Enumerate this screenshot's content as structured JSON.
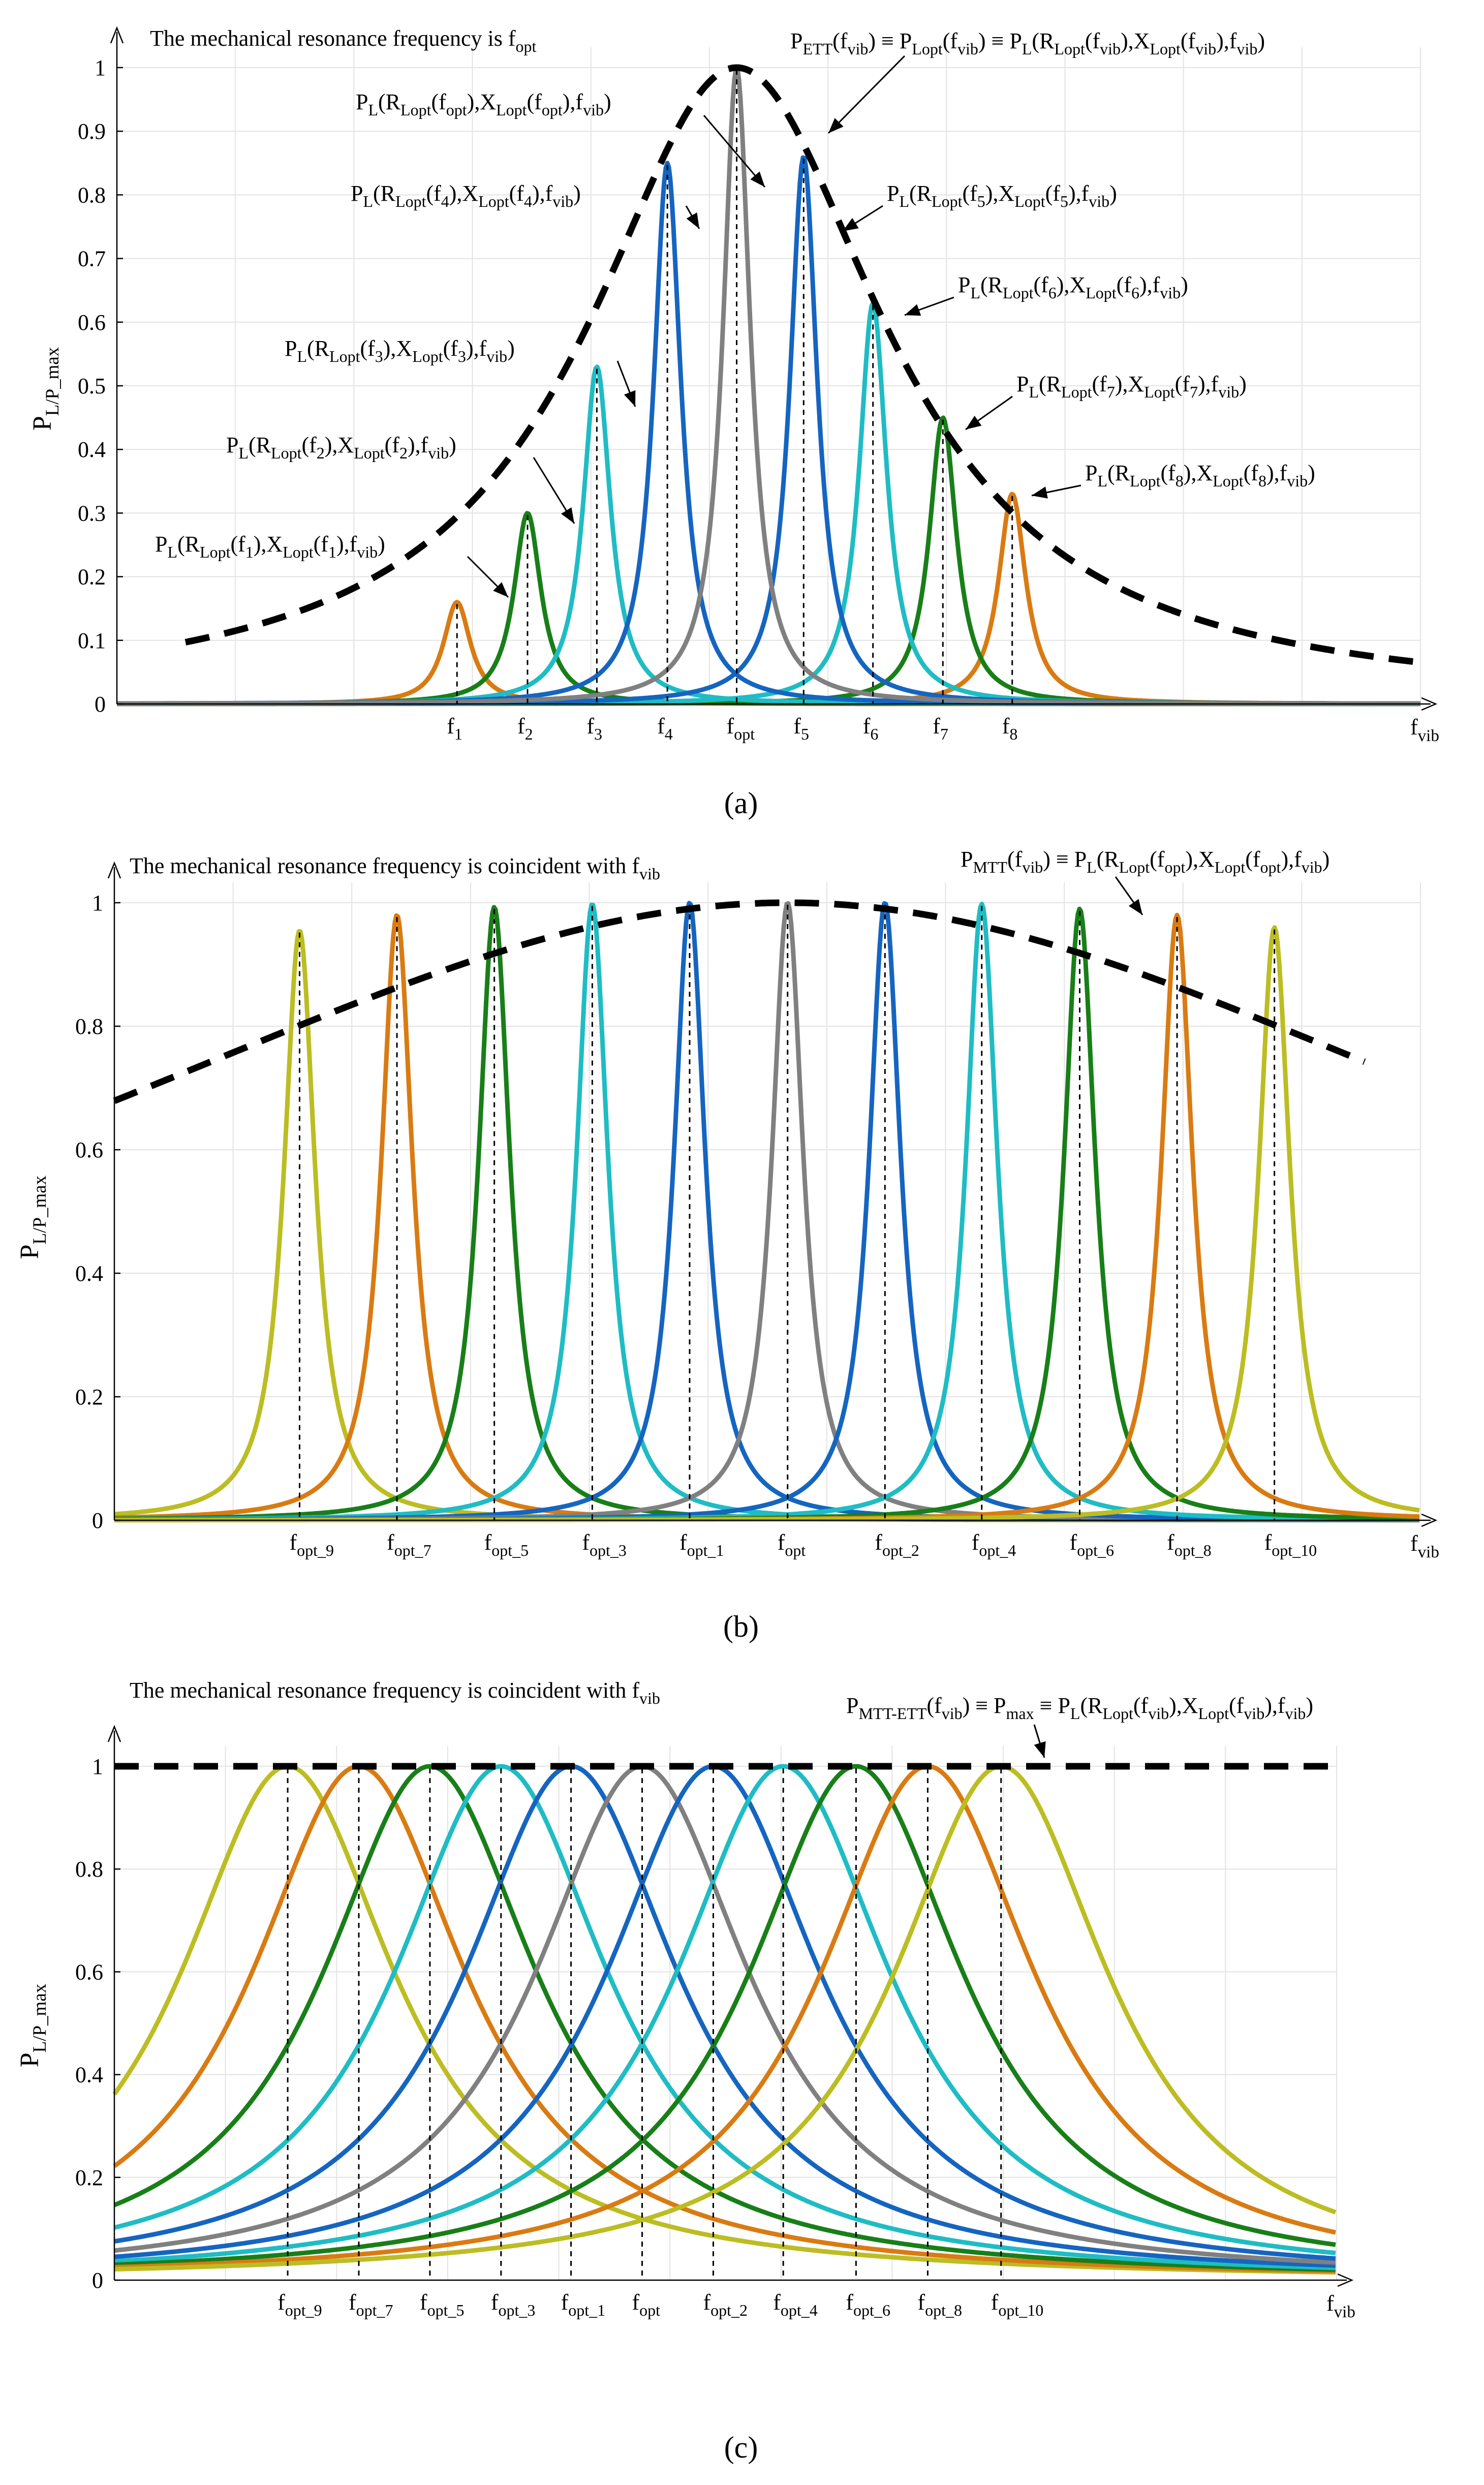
{
  "colors": {
    "orange": "#d97b12",
    "green": "#187f18",
    "cyan": "#1fbcc4",
    "blue": "#1565c0",
    "gray": "#808080",
    "olive": "#bcbd22",
    "envelope": "#000000",
    "grid": "#e3e3e3"
  },
  "chart_data": [
    {
      "panel": "(a)",
      "type": "line",
      "title": "The mechanical resonance frequency is f_opt",
      "ylabel": "P_L/P_max",
      "xlabel": "f_vib",
      "ylim": [
        0,
        1
      ],
      "yticks": [
        0,
        0.1,
        0.2,
        0.3,
        0.4,
        0.5,
        0.6,
        0.7,
        0.8,
        0.9,
        1
      ],
      "xlim": [
        0,
        22
      ],
      "x_markers": [
        {
          "label": "f_1",
          "x": 5.74,
          "peak": 0.16,
          "color_key": "orange"
        },
        {
          "label": "f_2",
          "x": 6.93,
          "peak": 0.3,
          "color_key": "green"
        },
        {
          "label": "f_3",
          "x": 8.1,
          "peak": 0.53,
          "color_key": "cyan"
        },
        {
          "label": "f_4",
          "x": 9.29,
          "peak": 0.85,
          "color_key": "blue"
        },
        {
          "label": "f_opt",
          "x": 10.46,
          "peak": 1.0,
          "color_key": "gray"
        },
        {
          "label": "f_5",
          "x": 11.59,
          "peak": 0.86,
          "color_key": "blue"
        },
        {
          "label": "f_6",
          "x": 12.76,
          "peak": 0.63,
          "color_key": "cyan"
        },
        {
          "label": "f_7",
          "x": 13.94,
          "peak": 0.45,
          "color_key": "green"
        },
        {
          "label": "f_8",
          "x": 15.11,
          "peak": 0.33,
          "color_key": "orange"
        }
      ],
      "envelope_label": "P_ETT(f_vib) ≡ P_Lopt(f_vib) ≡ P_L(R_Lopt(f_vib),X_Lopt(f_vib),f_vib)",
      "curve_annotations": [
        "P_L(R_Lopt(f_1),X_Lopt(f_1),f_vib)",
        "P_L(R_Lopt(f_2),X_Lopt(f_2),f_vib)",
        "P_L(R_Lopt(f_3),X_Lopt(f_3),f_vib)",
        "P_L(R_Lopt(f_4),X_Lopt(f_4),f_vib)",
        "P_L(R_Lopt(f_opt),X_Lopt(f_opt),f_vib)",
        "P_L(R_Lopt(f_5),X_Lopt(f_5),f_vib)",
        "P_L(R_Lopt(f_6),X_Lopt(f_6),f_vib)",
        "P_L(R_Lopt(f_7),X_Lopt(f_7),f_vib)",
        "P_L(R_Lopt(f_8),X_Lopt(f_8),f_vib)"
      ]
    },
    {
      "panel": "(b)",
      "type": "line",
      "title": "The mechanical resonance frequency is coincident with f_vib",
      "ylabel": "P_L/P_max",
      "xlabel": "f_vib",
      "ylim": [
        0,
        1
      ],
      "yticks": [
        0,
        0.2,
        0.4,
        0.6,
        0.8,
        1
      ],
      "xlim": [
        0,
        22
      ],
      "x_markers": [
        {
          "label": "f_opt_9",
          "x": 3.12,
          "peak": 0.955,
          "color_key": "olive"
        },
        {
          "label": "f_opt_7",
          "x": 4.76,
          "peak": 0.98,
          "color_key": "orange"
        },
        {
          "label": "f_opt_5",
          "x": 6.4,
          "peak": 0.993,
          "color_key": "green"
        },
        {
          "label": "f_opt_3",
          "x": 8.05,
          "peak": 0.998,
          "color_key": "cyan"
        },
        {
          "label": "f_opt_1",
          "x": 9.69,
          "peak": 1.0,
          "color_key": "blue"
        },
        {
          "label": "f_opt",
          "x": 11.34,
          "peak": 1.0,
          "color_key": "gray"
        },
        {
          "label": "f_opt_2",
          "x": 12.98,
          "peak": 1.0,
          "color_key": "blue"
        },
        {
          "label": "f_opt_4",
          "x": 14.61,
          "peak": 0.998,
          "color_key": "cyan"
        },
        {
          "label": "f_opt_6",
          "x": 16.26,
          "peak": 0.99,
          "color_key": "green"
        },
        {
          "label": "f_opt_8",
          "x": 17.9,
          "peak": 0.98,
          "color_key": "orange"
        },
        {
          "label": "f_opt_10",
          "x": 19.54,
          "peak": 0.96,
          "color_key": "olive"
        }
      ],
      "envelope_label": "P_MTT(f_vib) ≡ P_L(R_Lopt(f_opt),X_Lopt(f_opt),f_vib)"
    },
    {
      "panel": "(c)",
      "type": "line",
      "title": "The mechanical resonance frequency is coincident with f_vib",
      "ylabel": "P_L/P_max",
      "xlabel": "f_vib",
      "ylim": [
        0,
        1
      ],
      "yticks": [
        0,
        0.2,
        0.4,
        0.6,
        0.8,
        1
      ],
      "xlim": [
        0,
        22
      ],
      "x_markers": [
        {
          "label": "f_opt_9",
          "x": 3.12,
          "peak": 1.0,
          "color_key": "olive"
        },
        {
          "label": "f_opt_7",
          "x": 4.4,
          "peak": 1.0,
          "color_key": "orange"
        },
        {
          "label": "f_opt_5",
          "x": 5.68,
          "peak": 1.0,
          "color_key": "green"
        },
        {
          "label": "f_opt_3",
          "x": 6.96,
          "peak": 1.0,
          "color_key": "cyan"
        },
        {
          "label": "f_opt_1",
          "x": 8.22,
          "peak": 1.0,
          "color_key": "blue"
        },
        {
          "label": "f_opt",
          "x": 9.5,
          "peak": 1.0,
          "color_key": "gray"
        },
        {
          "label": "f_opt_2",
          "x": 10.78,
          "peak": 1.0,
          "color_key": "blue"
        },
        {
          "label": "f_opt_4",
          "x": 12.04,
          "peak": 1.0,
          "color_key": "cyan"
        },
        {
          "label": "f_opt_6",
          "x": 13.35,
          "peak": 1.0,
          "color_key": "green"
        },
        {
          "label": "f_opt_8",
          "x": 14.64,
          "peak": 1.0,
          "color_key": "orange"
        },
        {
          "label": "f_opt_10",
          "x": 15.96,
          "peak": 1.0,
          "color_key": "olive"
        }
      ],
      "envelope_label": "P_MTT-ETT(f_vib) ≡ P_max ≡ P_L(R_Lopt(f_vib),X_Lopt(f_vib),f_vib)"
    }
  ]
}
